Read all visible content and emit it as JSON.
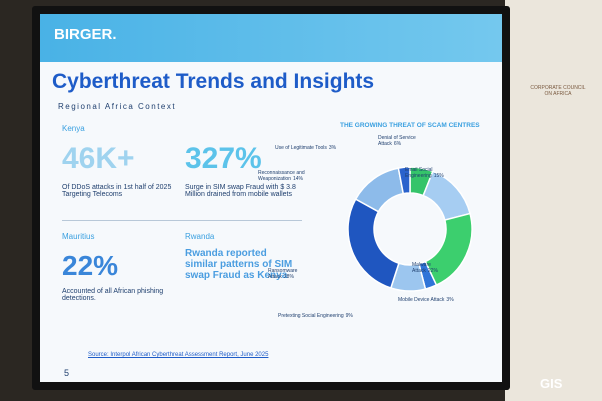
{
  "logo": "BIRGER.",
  "title": "Cyberthreat Trends and Insights",
  "subtitle": "Regional Africa Context",
  "kenya": {
    "label": "Kenya",
    "stat1": "46K+",
    "text1": "Of DDoS attacks in 1st half of 2025 Targeting Telecoms",
    "stat2": "327%",
    "text2": "Surge in SIM swap Fraud with $ 3.8 Million drained from mobile wallets"
  },
  "mauritius": {
    "label": "Mauritius",
    "stat": "22%",
    "text": "Accounted of all African phishing detections."
  },
  "rwanda": {
    "label": "Rwanda",
    "text": "Rwanda reported similar patterns of SIM swap Fraud as Kenya"
  },
  "source": "Source: Interpol African Cyberthreat Assessment Report, June 2025",
  "page_number": "5",
  "wall_sign": "CORPORATE COUNCIL ON AFRICA",
  "watermark": "GIS",
  "chart_data": {
    "type": "pie",
    "title": "THE GROWING THREAT OF SCAM CENTRES",
    "donut": true,
    "categories": [
      "Denial of Service Attack",
      "Email Social Engineering",
      "Malware Attack",
      "Mobile Device Attack",
      "Pretexting Social Engineering",
      "Ransomware Attack",
      "Reconnaissance and Weaponization",
      "Use of Legitimate Tools"
    ],
    "values": [
      6,
      15,
      22,
      3,
      9,
      28,
      14,
      3
    ],
    "value_labels": [
      "6%",
      "15%",
      "22%",
      "3%",
      "9%",
      "28%",
      "14%",
      "3%"
    ],
    "colors": [
      "#35c46a",
      "#a6cdf2",
      "#3ccf6e",
      "#2f74d8",
      "#9cc6ef",
      "#1f56c0",
      "#8dbbea",
      "#2a62cc"
    ]
  }
}
